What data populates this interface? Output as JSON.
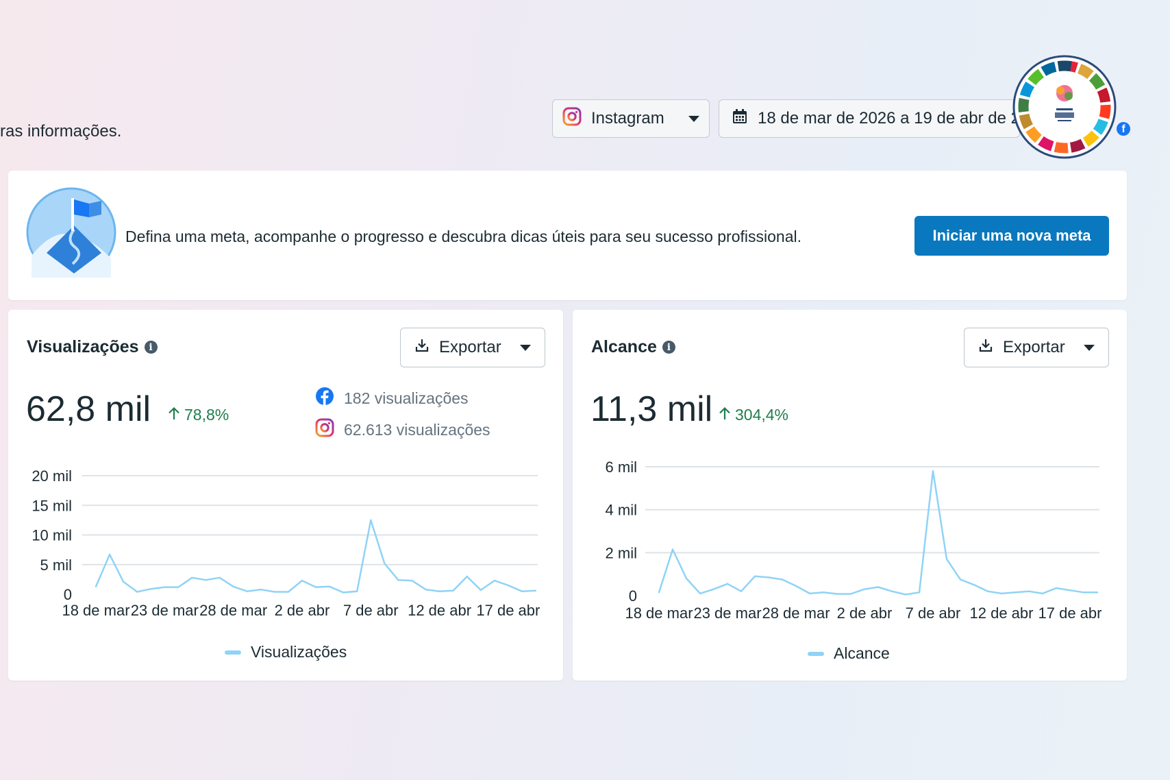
{
  "header": {
    "subtext": "ras informações.",
    "platform_dropdown": {
      "icon": "instagram-icon",
      "label": "Instagram"
    },
    "date_dropdown": {
      "icon": "calendar-icon",
      "label": "18 de mar de 2026 a 19 de abr de 2026"
    }
  },
  "goal_banner": {
    "text": "Defina uma meta, acompanhe o progresso e descubra dicas úteis para seu sucesso profissional.",
    "button_label": "Iniciar uma nova meta"
  },
  "views_card": {
    "title": "Visualizações",
    "export_label": "Exportar",
    "total": "62,8 mil",
    "delta": "78,8%",
    "facebook_views": "182 visualizações",
    "instagram_views": "62.613 visualizações",
    "legend": "Visualizações"
  },
  "reach_card": {
    "title": "Alcance",
    "export_label": "Exportar",
    "total": "11,3 mil",
    "delta": "304,4%",
    "legend": "Alcance"
  },
  "colors": {
    "accent": "#0a78be",
    "positive": "#1e7d4c",
    "series": "#8fd3f6",
    "gridline": "#dde3e8"
  },
  "chart_data": [
    {
      "type": "line",
      "x": [
        "2026-03-18",
        "2026-03-19",
        "2026-03-20",
        "2026-03-21",
        "2026-03-22",
        "2026-03-23",
        "2026-03-24",
        "2026-03-25",
        "2026-03-26",
        "2026-03-27",
        "2026-03-28",
        "2026-03-29",
        "2026-03-30",
        "2026-03-31",
        "2026-04-01",
        "2026-04-02",
        "2026-04-03",
        "2026-04-04",
        "2026-04-05",
        "2026-04-06",
        "2026-04-07",
        "2026-04-08",
        "2026-04-09",
        "2026-04-10",
        "2026-04-11",
        "2026-04-12",
        "2026-04-13",
        "2026-04-14",
        "2026-04-15",
        "2026-04-16",
        "2026-04-17",
        "2026-04-18",
        "2026-04-19"
      ],
      "x_tick_labels": [
        "18 de mar",
        "23 de mar",
        "28 de mar",
        "2 de abr",
        "7 de abr",
        "12 de abr",
        "17 de abr"
      ],
      "y_tick_labels": [
        "0",
        "5 mil",
        "10 mil",
        "15 mil",
        "20 mil"
      ],
      "ylim": [
        0,
        20000
      ],
      "grid": true,
      "legend_position": "bottom",
      "series": [
        {
          "name": "Visualizações",
          "values": [
            1300,
            6700,
            2100,
            400,
            900,
            1200,
            1200,
            2800,
            2400,
            2800,
            1300,
            500,
            800,
            400,
            400,
            2300,
            1200,
            1300,
            300,
            500,
            12500,
            5200,
            2400,
            2300,
            800,
            500,
            600,
            3000,
            700,
            2300,
            1500,
            500,
            600
          ]
        }
      ]
    },
    {
      "type": "line",
      "x": [
        "2026-03-18",
        "2026-03-19",
        "2026-03-20",
        "2026-03-21",
        "2026-03-22",
        "2026-03-23",
        "2026-03-24",
        "2026-03-25",
        "2026-03-26",
        "2026-03-27",
        "2026-03-28",
        "2026-03-29",
        "2026-03-30",
        "2026-03-31",
        "2026-04-01",
        "2026-04-02",
        "2026-04-03",
        "2026-04-04",
        "2026-04-05",
        "2026-04-06",
        "2026-04-07",
        "2026-04-08",
        "2026-04-09",
        "2026-04-10",
        "2026-04-11",
        "2026-04-12",
        "2026-04-13",
        "2026-04-14",
        "2026-04-15",
        "2026-04-16",
        "2026-04-17",
        "2026-04-18",
        "2026-04-19"
      ],
      "x_tick_labels": [
        "18 de mar",
        "23 de mar",
        "28 de mar",
        "2 de abr",
        "7 de abr",
        "12 de abr",
        "17 de abr"
      ],
      "y_tick_labels": [
        "0",
        "2 mil",
        "4 mil",
        "6 mil"
      ],
      "ylim": [
        0,
        6000
      ],
      "grid": true,
      "legend_position": "bottom",
      "series": [
        {
          "name": "Alcance",
          "values": [
            150,
            2150,
            800,
            100,
            300,
            550,
            200,
            900,
            850,
            750,
            450,
            100,
            150,
            80,
            80,
            300,
            400,
            200,
            50,
            150,
            5800,
            1700,
            750,
            500,
            200,
            100,
            150,
            200,
            100,
            350,
            250,
            150,
            150
          ]
        }
      ]
    }
  ]
}
